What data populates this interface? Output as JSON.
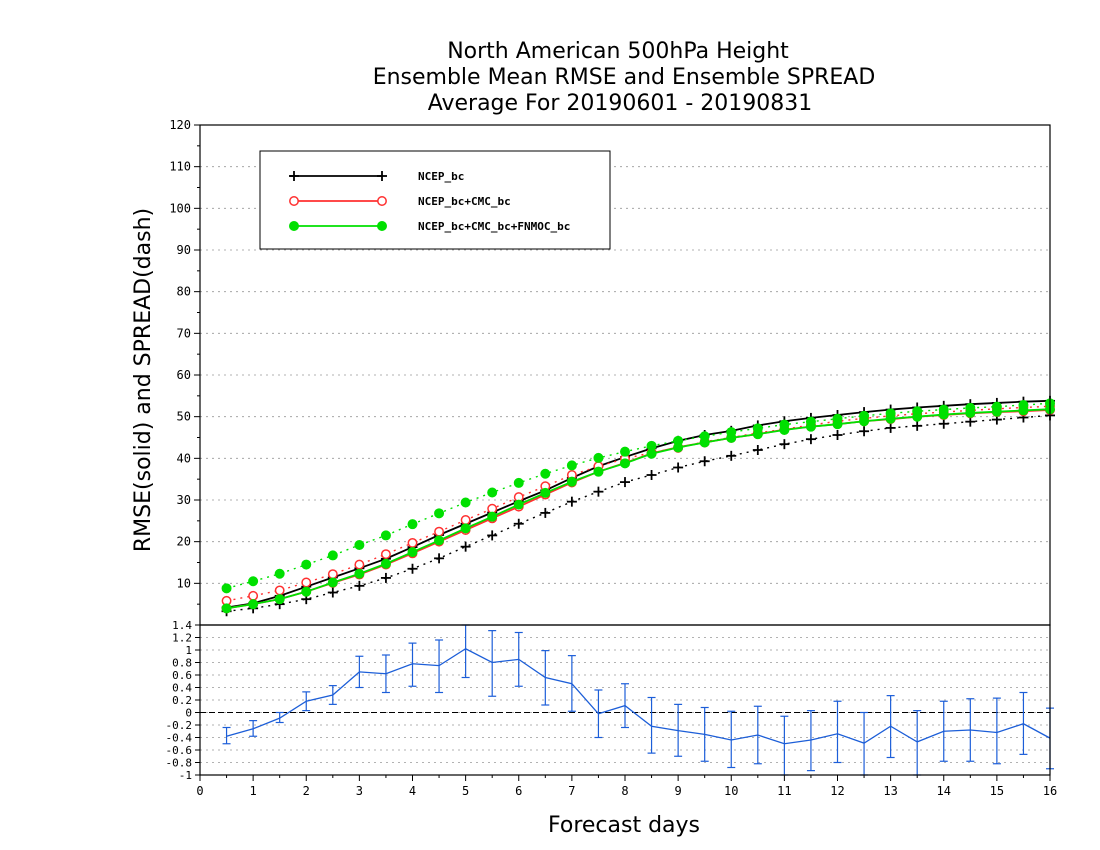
{
  "chart_data": [
    {
      "type": "line",
      "title": [
        "North American 500hPa Height",
        "Ensemble Mean RMSE and Ensemble SPREAD",
        "Average For 20190601 - 20190831"
      ],
      "ylabel": "RMSE(solid) and SPREAD(dash)",
      "xlim": [
        0,
        16
      ],
      "ylim": [
        0,
        120
      ],
      "yticks": [
        10,
        20,
        30,
        40,
        50,
        60,
        70,
        80,
        90,
        100,
        110,
        120
      ],
      "grid": true,
      "legend_position": "top-left",
      "x": [
        0.5,
        1,
        1.5,
        2,
        2.5,
        3,
        3.5,
        4,
        4.5,
        5,
        5.5,
        6,
        6.5,
        7,
        7.5,
        8,
        8.5,
        9,
        9.5,
        10,
        10.5,
        11,
        11.5,
        12,
        12.5,
        13,
        13.5,
        14,
        14.5,
        15,
        15.5,
        16
      ],
      "series": [
        {
          "name": "NCEP_bc",
          "color": "#000000",
          "marker": "plus",
          "rmse": [
            4.2,
            5.2,
            7.0,
            9.2,
            11.4,
            13.6,
            15.9,
            18.7,
            21.6,
            24.3,
            27.0,
            29.7,
            32.3,
            35.3,
            38.1,
            40.3,
            42.4,
            44.2,
            45.6,
            46.6,
            47.9,
            48.9,
            49.7,
            50.4,
            51.1,
            51.7,
            52.2,
            52.6,
            53.0,
            53.3,
            53.6,
            53.8
          ],
          "spread": [
            3.3,
            4.0,
            5.0,
            6.2,
            7.8,
            9.4,
            11.3,
            13.5,
            16.0,
            18.8,
            21.5,
            24.3,
            26.9,
            29.6,
            32.0,
            34.3,
            36.0,
            37.8,
            39.3,
            40.6,
            42.0,
            43.4,
            44.6,
            45.6,
            46.5,
            47.3,
            47.8,
            48.3,
            48.8,
            49.3,
            49.8,
            50.3
          ]
        },
        {
          "name": "NCEP_bc+CMC_bc",
          "color": "#ff3030",
          "marker": "open-circle",
          "rmse": [
            4.0,
            5.0,
            6.2,
            8.0,
            10.1,
            12.1,
            14.5,
            17.2,
            20.0,
            22.8,
            25.6,
            28.4,
            31.3,
            34.2,
            36.8,
            38.9,
            41.2,
            42.7,
            43.8,
            44.9,
            45.8,
            46.9,
            47.6,
            48.2,
            48.9,
            49.4,
            50.0,
            50.4,
            50.8,
            51.1,
            51.3,
            51.6
          ],
          "spread": [
            5.8,
            7.0,
            8.3,
            10.2,
            12.2,
            14.5,
            17.0,
            19.7,
            22.4,
            25.2,
            27.9,
            30.7,
            33.3,
            36.0,
            38.1,
            39.9,
            41.4,
            42.5,
            44.0,
            45.0,
            46.1,
            47.0,
            48.0,
            48.9,
            49.6,
            50.2,
            50.7,
            51.1,
            51.5,
            51.9,
            52.2,
            52.5
          ]
        },
        {
          "name": "NCEP_bc+CMC_bc+FNMOC_bc",
          "color": "#00e000",
          "marker": "filled-circle",
          "rmse": [
            4.0,
            5.0,
            6.2,
            8.0,
            10.2,
            12.3,
            14.7,
            17.5,
            20.3,
            23.2,
            26.0,
            28.9,
            31.7,
            34.4,
            36.8,
            38.8,
            41.1,
            42.6,
            43.8,
            44.9,
            45.8,
            46.8,
            47.6,
            48.2,
            48.9,
            49.5,
            50.0,
            50.5,
            50.9,
            51.2,
            51.5,
            51.8
          ],
          "spread": [
            8.8,
            10.5,
            12.3,
            14.5,
            16.7,
            19.2,
            21.5,
            24.2,
            26.8,
            29.4,
            31.8,
            34.1,
            36.3,
            38.3,
            40.1,
            41.6,
            43.0,
            44.2,
            45.3,
            46.3,
            47.2,
            48.1,
            48.8,
            49.5,
            50.2,
            50.8,
            51.3,
            51.7,
            52.1,
            52.4,
            52.8,
            53.2
          ]
        }
      ]
    },
    {
      "type": "line",
      "subtype": "error-bar",
      "xlabel": "Forecast days",
      "xlim": [
        0,
        16
      ],
      "ylim": [
        -1,
        1.4
      ],
      "xticks": [
        0,
        1,
        2,
        3,
        4,
        5,
        6,
        7,
        8,
        9,
        10,
        11,
        12,
        13,
        14,
        15,
        16
      ],
      "yticks": [
        -1,
        -0.8,
        -0.6,
        -0.4,
        -0.2,
        0,
        0.2,
        0.4,
        0.6,
        0.8,
        1,
        1.2,
        1.4
      ],
      "ytick_labels": [
        "-1",
        "-0.8",
        "-0.6",
        "-0.4",
        "-0.2",
        "0",
        "0.2",
        "0.4",
        "0.6",
        "0.8",
        "1",
        "1.2",
        "1.4"
      ],
      "grid": true,
      "color": "#1c5ed8",
      "reference_line": 0,
      "x": [
        0.5,
        1,
        1.5,
        2,
        2.5,
        3,
        3.5,
        4,
        4.5,
        5,
        5.5,
        6,
        6.5,
        7,
        7.5,
        8,
        8.5,
        9,
        9.5,
        10,
        10.5,
        11,
        11.5,
        12,
        12.5,
        13,
        13.5,
        14,
        14.5,
        15,
        15.5,
        16
      ],
      "values": [
        -0.38,
        -0.26,
        -0.09,
        0.18,
        0.28,
        0.65,
        0.62,
        0.78,
        0.75,
        1.02,
        0.8,
        0.85,
        0.56,
        0.46,
        -0.02,
        0.11,
        -0.22,
        -0.29,
        -0.35,
        -0.44,
        -0.36,
        -0.5,
        -0.44,
        -0.34,
        -0.49,
        -0.22,
        -0.47,
        -0.3,
        -0.28,
        -0.32,
        -0.18,
        -0.41
      ],
      "lower": [
        -0.5,
        -0.38,
        -0.16,
        0.03,
        0.13,
        0.4,
        0.32,
        0.42,
        0.32,
        0.56,
        0.26,
        0.42,
        0.12,
        0.02,
        -0.4,
        -0.24,
        -0.65,
        -0.7,
        -0.78,
        -0.88,
        -0.82,
        -1.0,
        -0.93,
        -0.8,
        -1.0,
        -0.72,
        -1.0,
        -0.78,
        -0.78,
        -0.82,
        -0.67,
        -0.9
      ],
      "upper": [
        -0.24,
        -0.13,
        0.0,
        0.33,
        0.43,
        0.9,
        0.92,
        1.11,
        1.16,
        1.48,
        1.31,
        1.28,
        0.99,
        0.91,
        0.36,
        0.46,
        0.24,
        0.13,
        0.08,
        0.02,
        0.1,
        -0.06,
        0.03,
        0.18,
        0.0,
        0.27,
        0.03,
        0.18,
        0.22,
        0.23,
        0.32,
        0.07
      ]
    }
  ]
}
